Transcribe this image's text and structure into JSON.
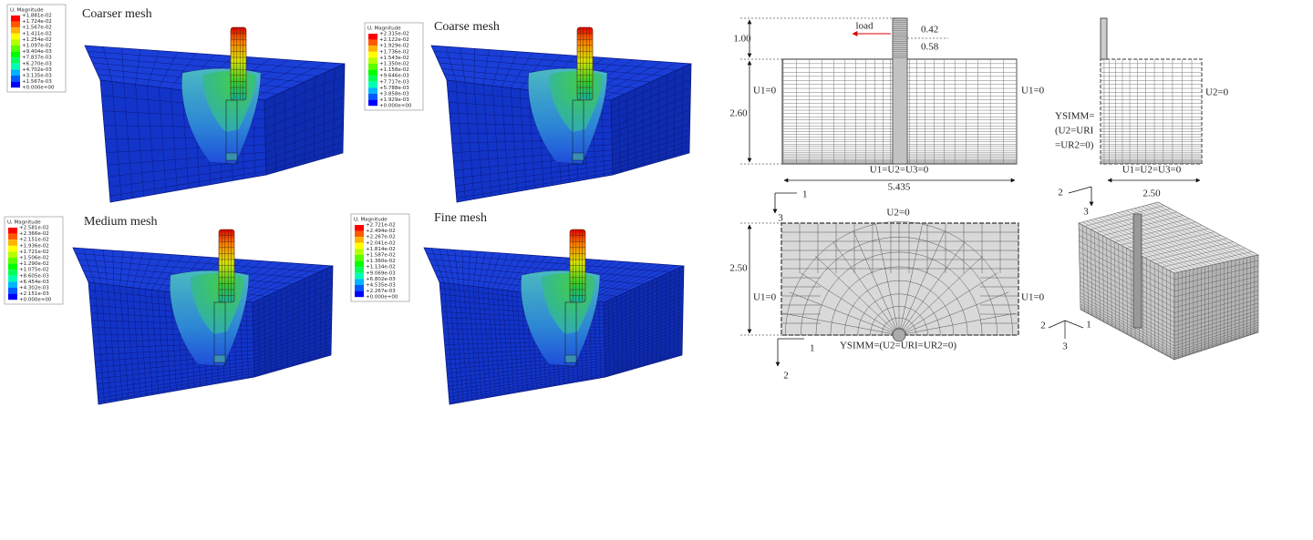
{
  "panels": [
    {
      "title": "Coarser mesh",
      "legend_title": "U, Magnitude",
      "legend_values": [
        "+1.881e-02",
        "+1.724e-02",
        "+1.567e-02",
        "+1.411e-02",
        "+1.254e-02",
        "+1.097e-02",
        "+9.404e-03",
        "+7.837e-03",
        "+6.270e-03",
        "+4.702e-03",
        "+3.135e-03",
        "+1.567e-03",
        "+0.000e+00"
      ]
    },
    {
      "title": "Coarse mesh",
      "legend_title": "U, Magnitude",
      "legend_values": [
        "+2.315e-02",
        "+2.122e-02",
        "+1.929e-02",
        "+1.736e-02",
        "+1.543e-02",
        "+1.350e-02",
        "+1.158e-02",
        "+9.646e-03",
        "+7.717e-03",
        "+5.788e-03",
        "+3.858e-03",
        "+1.929e-03",
        "+0.000e+00"
      ]
    },
    {
      "title": "Medium mesh",
      "legend_title": "U, Magnitude",
      "legend_values": [
        "+2.581e-02",
        "+2.366e-02",
        "+2.151e-02",
        "+1.936e-02",
        "+1.721e-02",
        "+1.506e-02",
        "+1.290e-02",
        "+1.075e-02",
        "+8.605e-03",
        "+6.454e-03",
        "+4.302e-03",
        "+2.151e-03",
        "+0.000e+00"
      ]
    },
    {
      "title": "Fine mesh",
      "legend_title": "U, Magnitude",
      "legend_values": [
        "+2.721e-02",
        "+2.494e-02",
        "+2.267e-02",
        "+2.041e-02",
        "+1.814e-02",
        "+1.587e-02",
        "+1.360e-02",
        "+1.134e-02",
        "+9.069e-03",
        "+6.802e-03",
        "+4.535e-03",
        "+2.267e-03",
        "+0.000e+00"
      ]
    }
  ],
  "elevation": {
    "load": "load",
    "dim_top_1": "0.42",
    "dim_top_2": "0.58",
    "pile_height": "1.00",
    "bc_left": "U1=0",
    "bc_right": "U1=0",
    "depth": "2.60",
    "bc_bottom": "U1=U2=U3=0",
    "length": "5.435",
    "axis_x": "1",
    "axis_y": "3"
  },
  "side": {
    "sym_1": "YSIMM=",
    "sym_2": "(U2=URI",
    "sym_3": "=UR2=0)",
    "bc_right": "U2=0",
    "bc_bottom": "U1=U2=U3=0",
    "width": "2.50",
    "axis_x": "2",
    "axis_y": "3"
  },
  "plan": {
    "bc_top": "U2=0",
    "width": "2.50",
    "bc_left": "U1=0",
    "bc_right": "U1=0",
    "bc_bottom": "YSIMM=(U2=URI=UR2=0)",
    "axis_x": "1",
    "axis_y": "2"
  },
  "iso": {
    "axis_2": "2",
    "axis_1": "1",
    "axis_3": "3"
  }
}
